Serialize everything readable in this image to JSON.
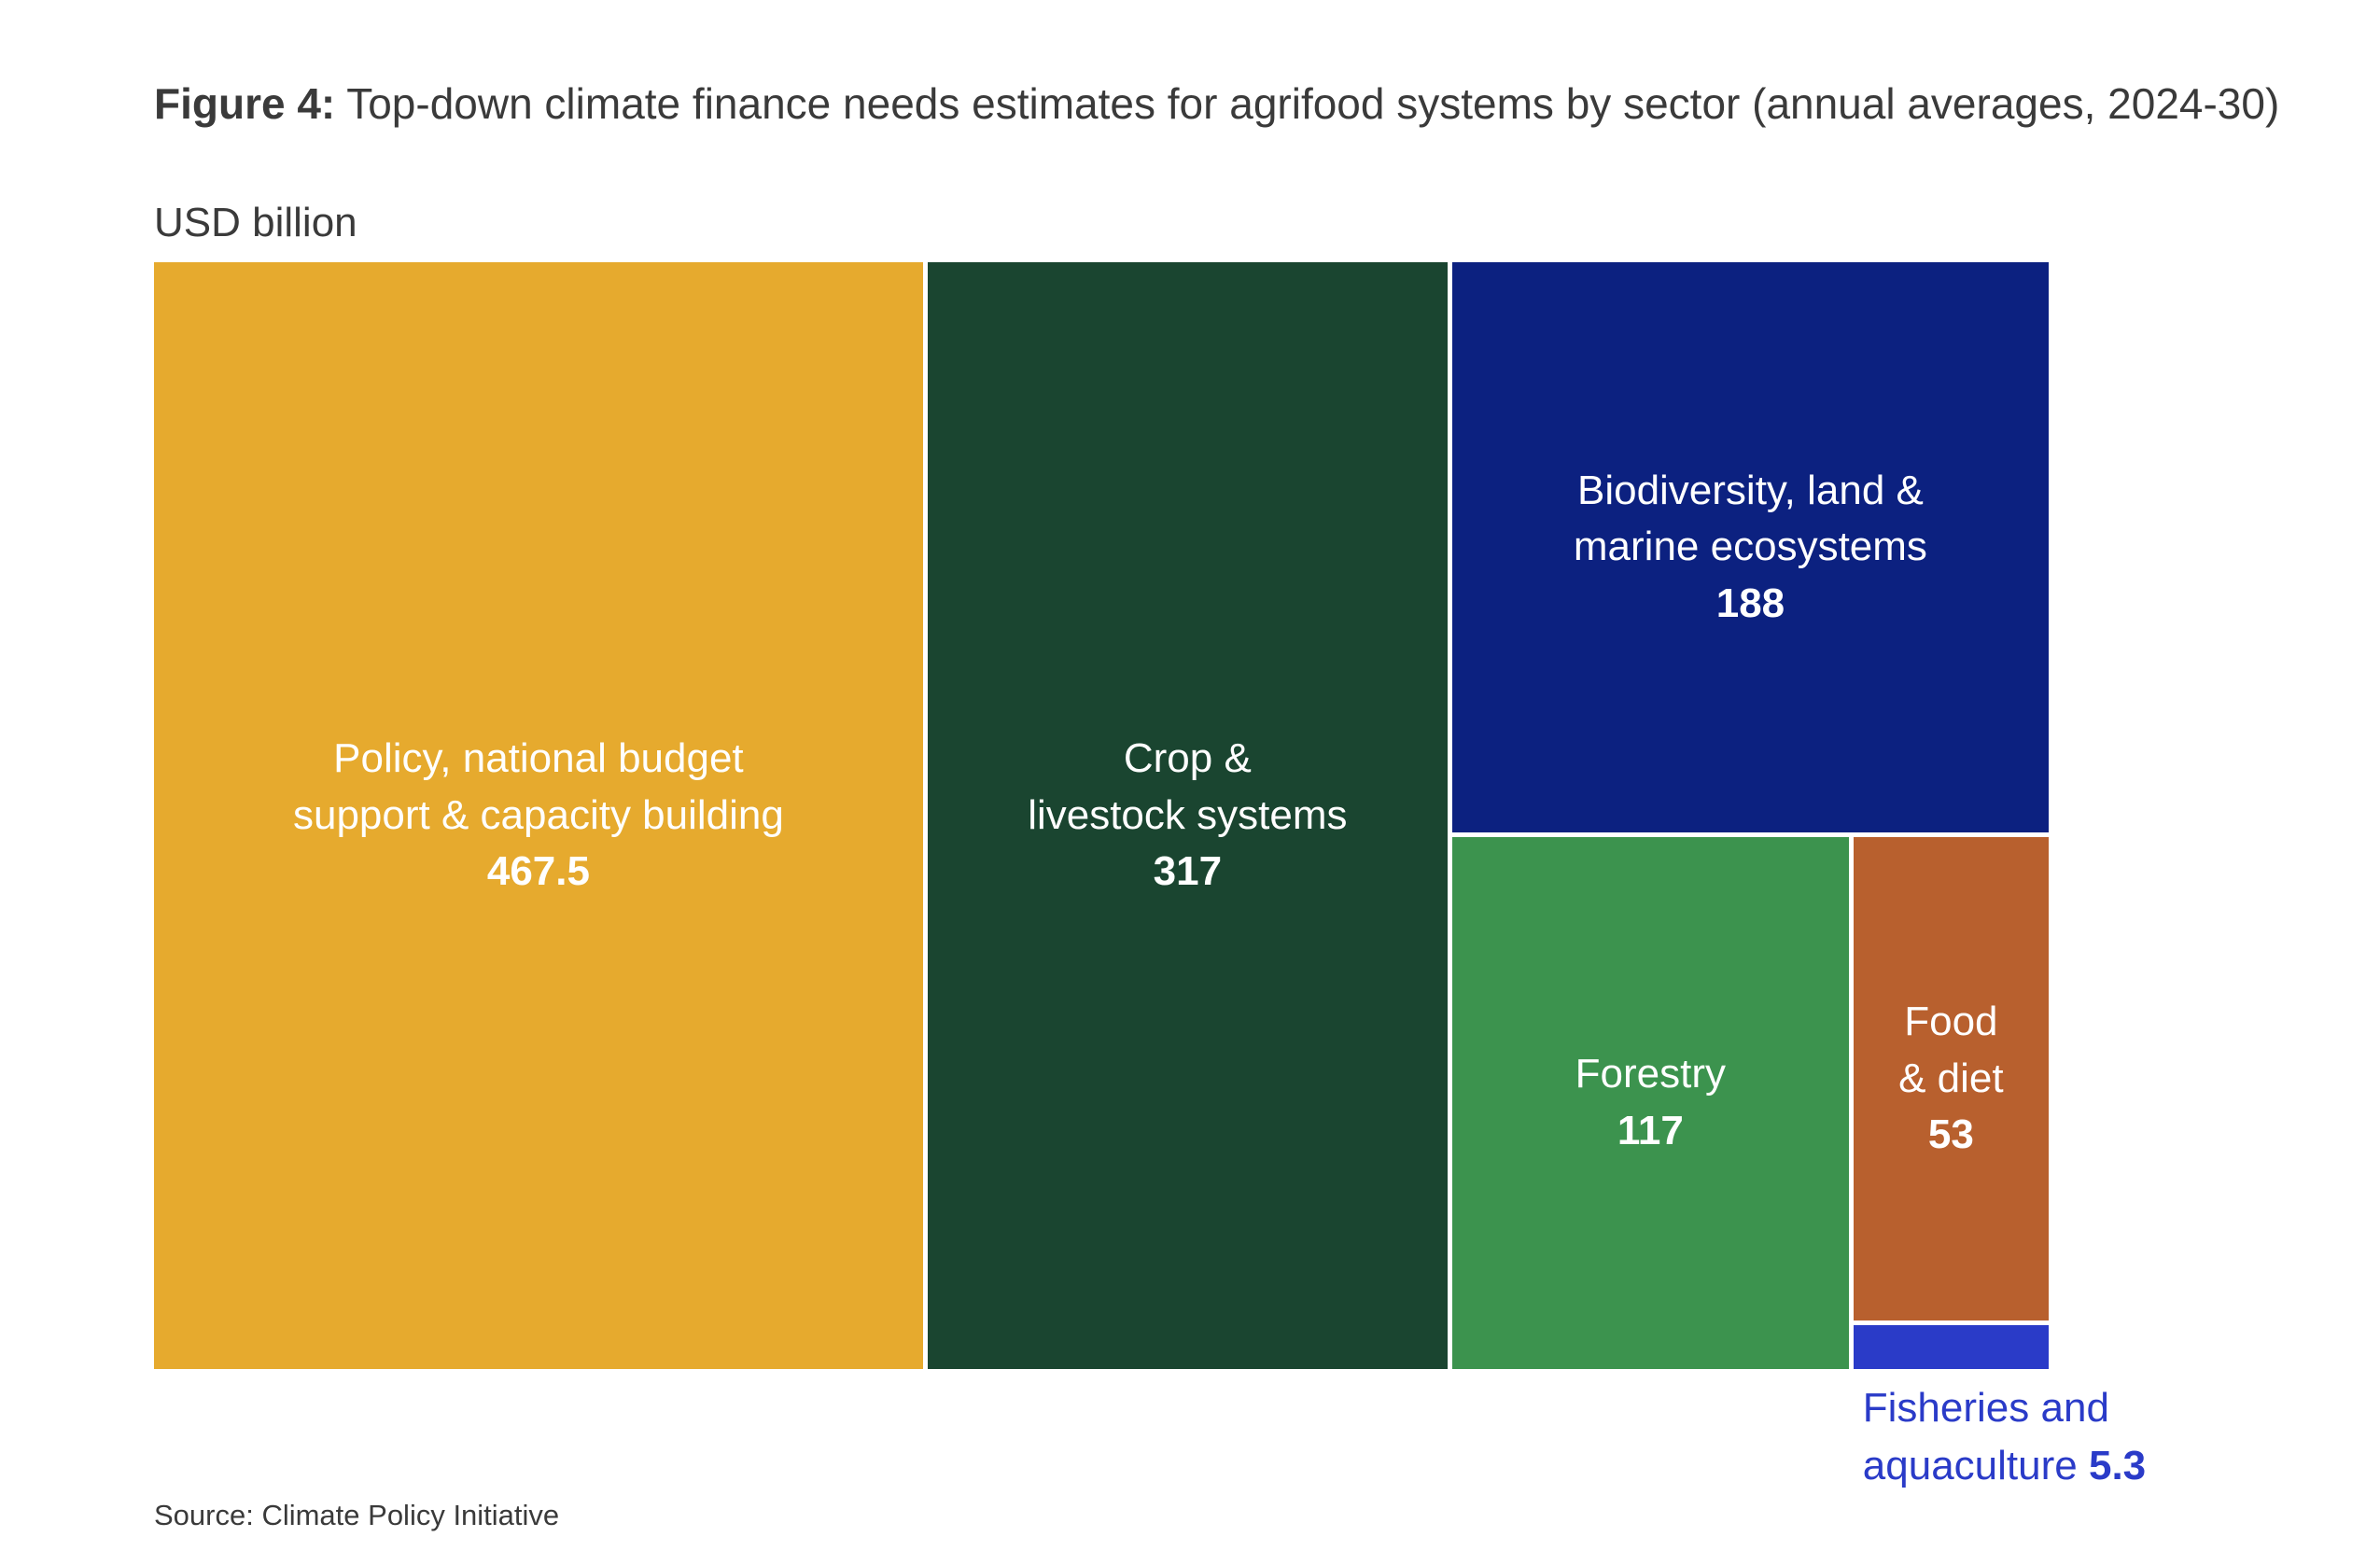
{
  "chart_data": {
    "type": "treemap",
    "title_prefix": "Figure 4:",
    "title": "Top-down climate finance needs estimates for agrifood systems by sector (annual averages, 2024-30)",
    "unit_label": "USD billion",
    "categories": [
      "Policy, national budget support & capacity building",
      "Crop & livestock systems",
      "Biodiversity, land & marine ecosystems",
      "Forestry",
      "Food & diet",
      "Fisheries and aquaculture"
    ],
    "values": [
      467.5,
      317,
      188,
      117,
      53,
      5.3
    ],
    "colors": [
      "#e6aa2e",
      "#1a4530",
      "#0c2180",
      "#3c934e",
      "#b8602e",
      "#2a3bc8"
    ],
    "source": "Source: Climate Policy Initiative"
  }
}
